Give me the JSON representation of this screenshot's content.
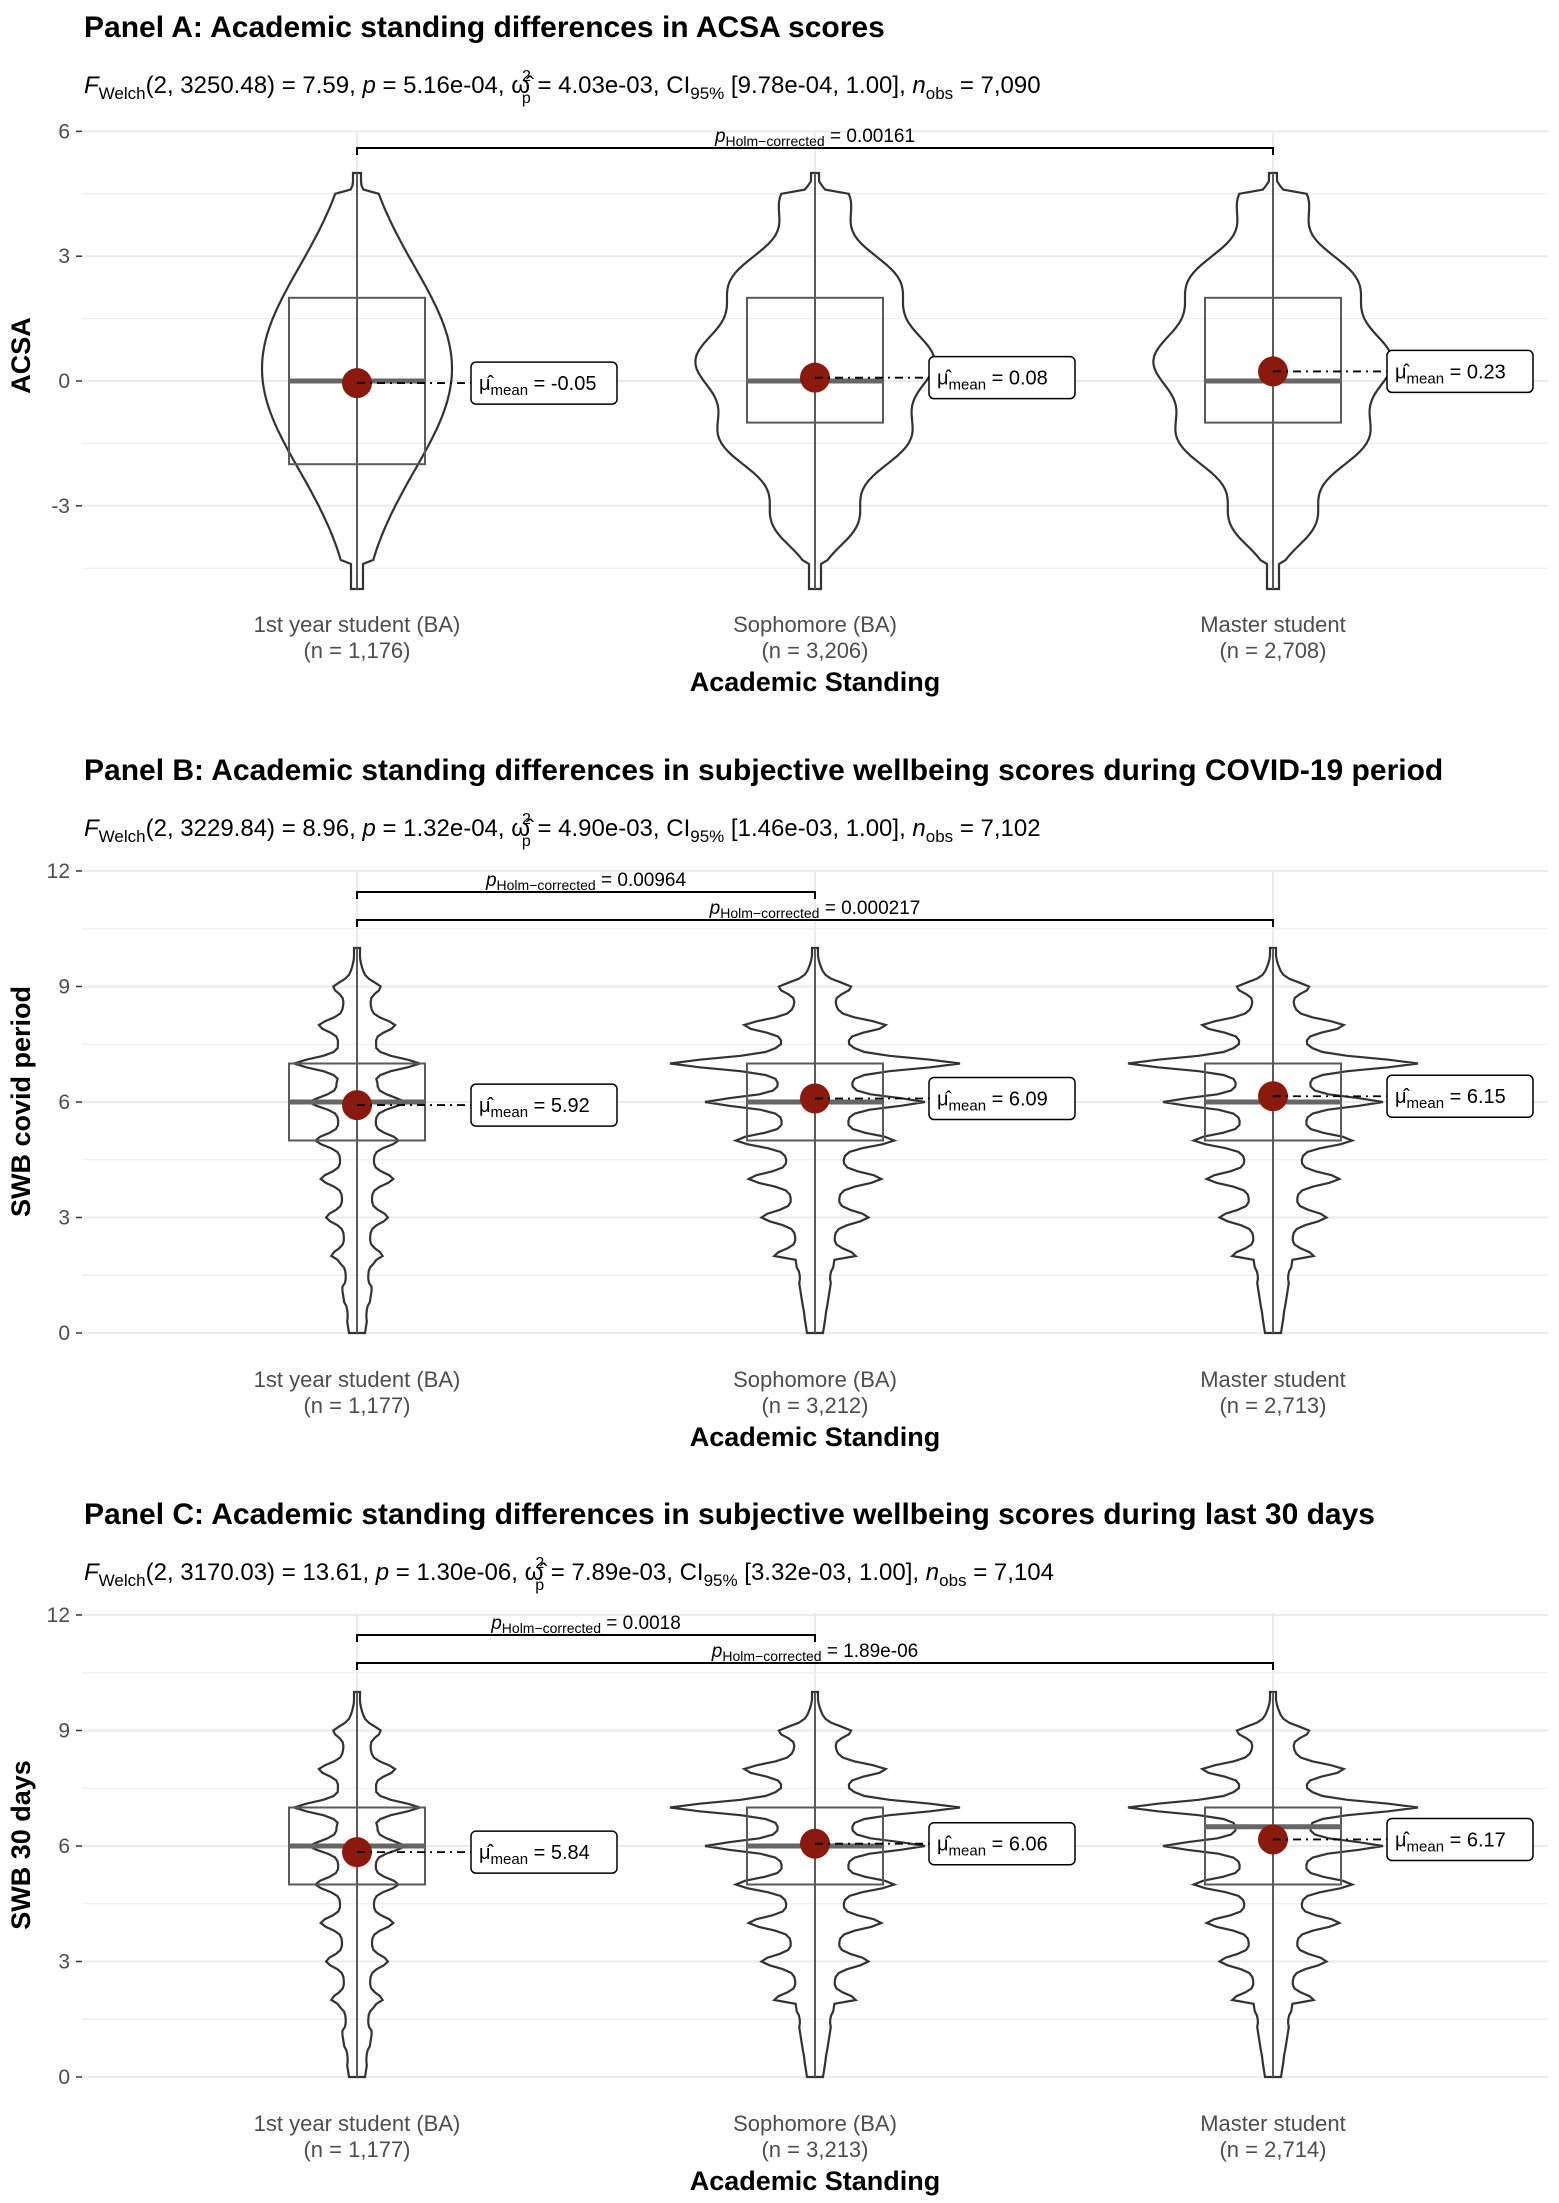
{
  "chart_data": [
    {
      "type": "violin",
      "panel_title": "Panel A: Academic standing differences in ACSA scores",
      "stats": {
        "f_label": "F",
        "f_sub": "Welch",
        "df": "2, 3250.48",
        "F": "7.59",
        "p": "5.16e-04",
        "omega_sup": "2",
        "omega_sub": "p",
        "omega": "4.03e-03",
        "ci_label": "CI",
        "ci_sub": "95%",
        "ci": "[9.78e-04, 1.00]",
        "n_label": "n",
        "n_sub": "obs",
        "n_obs": "7,090"
      },
      "ylabel": "ACSA",
      "xlabel": "Academic Standing",
      "ylim": [
        -5.5,
        6
      ],
      "yticks": [
        -3,
        0,
        3,
        6
      ],
      "yticks_labels": [
        "-3",
        "0",
        "3",
        "6"
      ],
      "categories": [
        {
          "name": "1st year student (BA)",
          "n_label": "(n = 1,176)",
          "mean": -0.05,
          "mean_label": "-0.05",
          "box": [
            -2,
            0,
            2
          ],
          "range": [
            -5,
            5
          ]
        },
        {
          "name": "Sophomore (BA)",
          "n_label": "(n = 3,206)",
          "mean": 0.08,
          "mean_label": "0.08",
          "box": [
            -1,
            0,
            2
          ],
          "range": [
            -5,
            5
          ]
        },
        {
          "name": "Master student",
          "n_label": "(n = 2,708)",
          "mean": 0.23,
          "mean_label": "0.23",
          "box": [
            -1,
            0,
            2
          ],
          "range": [
            -5,
            5
          ]
        }
      ],
      "comparisons": [
        {
          "from": 0,
          "to": 2,
          "p_label": "p",
          "p_sub": "Holm−corrected",
          "p_value": "0.00161"
        }
      ]
    },
    {
      "type": "violin",
      "panel_title": "Panel B: Academic standing differences in subjective wellbeing scores during COVID-19 period",
      "stats": {
        "f_label": "F",
        "f_sub": "Welch",
        "df": "2, 3229.84",
        "F": "8.96",
        "p": "1.32e-04",
        "omega_sup": "2",
        "omega_sub": "p",
        "omega": "4.90e-03",
        "ci_label": "CI",
        "ci_sub": "95%",
        "ci": "[1.46e-03, 1.00]",
        "n_label": "n",
        "n_sub": "obs",
        "n_obs": "7,102"
      },
      "ylabel": "SWB covid period",
      "xlabel": "Academic Standing",
      "ylim": [
        0,
        12
      ],
      "yticks": [
        0,
        3,
        6,
        9,
        12
      ],
      "yticks_labels": [
        "0",
        "3",
        "6",
        "9",
        "12"
      ],
      "categories": [
        {
          "name": "1st year student (BA)",
          "n_label": "(n = 1,177)",
          "mean": 5.92,
          "mean_label": "5.92",
          "box": [
            5,
            6,
            7
          ],
          "range": [
            0,
            10
          ]
        },
        {
          "name": "Sophomore (BA)",
          "n_label": "(n = 3,212)",
          "mean": 6.09,
          "mean_label": "6.09",
          "box": [
            5,
            6,
            7
          ],
          "range": [
            0,
            10
          ]
        },
        {
          "name": "Master student",
          "n_label": "(n = 2,713)",
          "mean": 6.15,
          "mean_label": "6.15",
          "box": [
            5,
            6,
            7
          ],
          "range": [
            0,
            10
          ]
        }
      ],
      "comparisons": [
        {
          "from": 0,
          "to": 1,
          "p_label": "p",
          "p_sub": "Holm−corrected",
          "p_value": "0.00964"
        },
        {
          "from": 0,
          "to": 2,
          "p_label": "p",
          "p_sub": "Holm−corrected",
          "p_value": "0.000217"
        }
      ]
    },
    {
      "type": "violin",
      "panel_title": "Panel C: Academic standing differences in subjective wellbeing scores during last 30 days",
      "stats": {
        "f_label": "F",
        "f_sub": "Welch",
        "df": "2, 3170.03",
        "F": "13.61",
        "p": "1.30e-06",
        "omega_sup": "2",
        "omega_sub": "p",
        "omega": "7.89e-03",
        "ci_label": "CI",
        "ci_sub": "95%",
        "ci": "[3.32e-03, 1.00]",
        "n_label": "n",
        "n_sub": "obs",
        "n_obs": "7,104"
      },
      "ylabel": "SWB 30 days",
      "xlabel": "Academic Standing",
      "ylim": [
        0,
        12
      ],
      "yticks": [
        0,
        3,
        6,
        9,
        12
      ],
      "yticks_labels": [
        "0",
        "3",
        "6",
        "9",
        "12"
      ],
      "categories": [
        {
          "name": "1st year student (BA)",
          "n_label": "(n = 1,177)",
          "mean": 5.84,
          "mean_label": "5.84",
          "box": [
            5,
            6,
            7
          ],
          "range": [
            0,
            10
          ]
        },
        {
          "name": "Sophomore (BA)",
          "n_label": "(n = 3,213)",
          "mean": 6.06,
          "mean_label": "6.06",
          "box": [
            5,
            6,
            7
          ],
          "range": [
            0,
            10
          ]
        },
        {
          "name": "Master student",
          "n_label": "(n = 2,714)",
          "mean": 6.17,
          "mean_label": "6.17",
          "box": [
            5,
            6.5,
            7
          ],
          "range": [
            0,
            10
          ]
        }
      ],
      "comparisons": [
        {
          "from": 0,
          "to": 1,
          "p_label": "p",
          "p_sub": "Holm−corrected",
          "p_value": "0.0018"
        },
        {
          "from": 0,
          "to": 2,
          "p_label": "p",
          "p_sub": "Holm−corrected",
          "p_value": "1.89e-06"
        }
      ]
    }
  ],
  "mean_symbol": "μ̂",
  "mean_sub": "mean",
  "colors": {
    "mean_point": "#8b1a0e",
    "violin": "#333333",
    "box": "#5a5a5a",
    "grid": "#ebebeb"
  }
}
